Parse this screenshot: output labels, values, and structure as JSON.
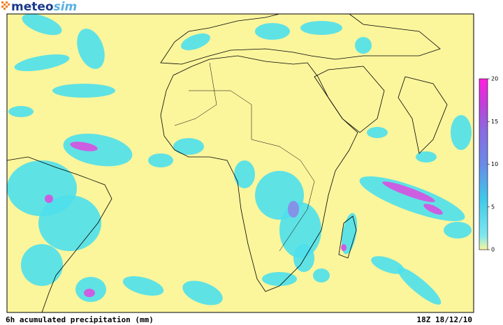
{
  "logo": {
    "part1": "meteo",
    "part2": "sim"
  },
  "caption": "6h acumulated precipitation (mm)",
  "timestamp": "18Z 18/12/10",
  "colorbar": {
    "lim": [
      0,
      20
    ],
    "ticks": [
      0,
      5,
      10,
      15,
      20
    ]
  }
}
